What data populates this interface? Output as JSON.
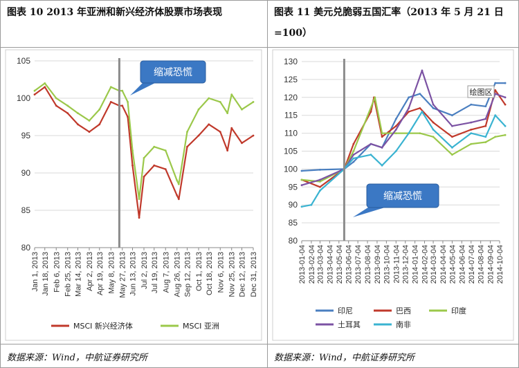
{
  "left": {
    "title": "图表 10 2013 年亚洲和新兴经济体股票市场表现",
    "source": "数据来源：Wind，中航证券研究所",
    "callout": "缩减恐慌"
  },
  "right": {
    "title_line1": "图表 11 美元兑脆弱五国汇率（2013 年 5 月 21 日",
    "title_line2": "=100）",
    "source": "数据来源：Wind，中航证券研究所",
    "callout": "缩减恐慌",
    "plot_area_label": "绘图区"
  },
  "chart_data": [
    {
      "type": "line",
      "title": "",
      "ylim": [
        80,
        105
      ],
      "yticks": [
        80,
        85,
        90,
        95,
        100,
        105
      ],
      "x_tick_labels": [
        "Jan 1, 2013",
        "Jan 18, 2013",
        "Feb 6, 2013",
        "Feb 25, 2013",
        "Mar 14, 2013",
        "Apr 2, 2013",
        "Apr 19, 2013",
        "May 8, 2013",
        "May 27, 2013",
        "Jun 13, 2013",
        "Jul 2, 2013",
        "Jul 19, 2013",
        "Aug 7, 2013",
        "Aug 26, 2013",
        "Sep 12, 2013",
        "Oct 1, 2013",
        "Oct 18, 2013",
        "Nov 6, 2013",
        "Nov 25, 2013",
        "Dec 12, 2013",
        "Dec 31, 2013"
      ],
      "event_x": "May 22, 2013",
      "legend_position": "bottom",
      "series": [
        {
          "name": "MSCI 新兴经济体",
          "color": "#c0392b",
          "x": [
            "Jan 1, 2013",
            "Jan 18, 2013",
            "Feb 6, 2013",
            "Feb 25, 2013",
            "Mar 14, 2013",
            "Apr 2, 2013",
            "Apr 19, 2013",
            "May 8, 2013",
            "May 22, 2013",
            "May 27, 2013",
            "Jun 5, 2013",
            "Jun 13, 2013",
            "Jun 24, 2013",
            "Jul 2, 2013",
            "Jul 19, 2013",
            "Aug 7, 2013",
            "Aug 26, 2013",
            "Aug 29, 2013",
            "Sep 12, 2013",
            "Oct 1, 2013",
            "Oct 18, 2013",
            "Nov 6, 2013",
            "Nov 18, 2013",
            "Nov 25, 2013",
            "Dec 12, 2013",
            "Dec 31, 2013"
          ],
          "values": [
            100.5,
            101.5,
            99.0,
            98.0,
            96.5,
            95.5,
            96.5,
            99.5,
            99.0,
            99.0,
            97.5,
            91.0,
            84.0,
            89.5,
            91.0,
            90.5,
            87.0,
            86.5,
            93.5,
            95.0,
            96.5,
            95.5,
            93.0,
            96.0,
            94.0,
            95.0
          ]
        },
        {
          "name": "MSCI 亚洲",
          "color": "#9bc84a",
          "x": [
            "Jan 1, 2013",
            "Jan 18, 2013",
            "Feb 6, 2013",
            "Feb 25, 2013",
            "Mar 14, 2013",
            "Apr 2, 2013",
            "Apr 19, 2013",
            "May 8, 2013",
            "May 22, 2013",
            "May 27, 2013",
            "Jun 5, 2013",
            "Jun 13, 2013",
            "Jun 24, 2013",
            "Jul 2, 2013",
            "Jul 19, 2013",
            "Aug 7, 2013",
            "Aug 26, 2013",
            "Aug 29, 2013",
            "Sep 12, 2013",
            "Oct 1, 2013",
            "Oct 18, 2013",
            "Nov 6, 2013",
            "Nov 18, 2013",
            "Nov 25, 2013",
            "Dec 12, 2013",
            "Dec 31, 2013"
          ],
          "values": [
            101.0,
            102.0,
            100.0,
            99.0,
            98.0,
            97.0,
            98.5,
            101.5,
            101.0,
            101.0,
            99.5,
            93.0,
            86.5,
            92.0,
            93.5,
            93.0,
            89.0,
            88.5,
            95.5,
            98.5,
            100.0,
            99.5,
            98.0,
            100.5,
            98.5,
            99.5
          ]
        }
      ]
    },
    {
      "type": "line",
      "title": "",
      "ylim": [
        80,
        130
      ],
      "yticks": [
        80,
        85,
        90,
        95,
        100,
        105,
        110,
        115,
        120,
        125,
        130
      ],
      "x_tick_labels": [
        "2013-01-04",
        "2013-02-04",
        "2013-03-04",
        "2013-04-04",
        "2013-05-04",
        "2013-06-04",
        "2013-07-04",
        "2013-08-04",
        "2013-09-04",
        "2013-10-04",
        "2013-11-04",
        "2013-12-04",
        "2014-01-04",
        "2014-02-04",
        "2014-03-04",
        "2014-04-04",
        "2014-05-04",
        "2014-06-04",
        "2014-07-04",
        "2014-08-04",
        "2014-09-04",
        "2014-10-04"
      ],
      "event_x": "2013-05-21",
      "legend_position": "bottom",
      "series": [
        {
          "name": "印尼",
          "color": "#4a7fc0",
          "x": [
            "2013-01-04",
            "2013-03-04",
            "2013-05-21",
            "2013-06-20",
            "2013-08-15",
            "2013-09-20",
            "2013-11-04",
            "2013-12-15",
            "2014-01-20",
            "2014-03-04",
            "2014-05-04",
            "2014-07-04",
            "2014-08-20",
            "2014-09-20",
            "2014-10-22"
          ],
          "values": [
            99.5,
            99.8,
            100.0,
            102.0,
            107.0,
            106.0,
            114.0,
            120.0,
            121.0,
            117.0,
            115.0,
            118.0,
            117.5,
            124.0,
            124.0
          ]
        },
        {
          "name": "巴西",
          "color": "#c0392b",
          "x": [
            "2013-01-04",
            "2013-03-04",
            "2013-05-21",
            "2013-06-20",
            "2013-08-15",
            "2013-08-25",
            "2013-09-20",
            "2013-11-04",
            "2013-12-15",
            "2014-01-20",
            "2014-03-04",
            "2014-05-04",
            "2014-07-04",
            "2014-08-20",
            "2014-09-20",
            "2014-10-22"
          ],
          "values": [
            97.0,
            95.0,
            100.0,
            107.0,
            116.0,
            120.0,
            109.0,
            112.0,
            116.0,
            117.0,
            113.0,
            109.0,
            111.0,
            112.0,
            122.0,
            118.0
          ]
        },
        {
          "name": "印度",
          "color": "#9bc84a",
          "x": [
            "2013-01-04",
            "2013-03-04",
            "2013-05-21",
            "2013-06-20",
            "2013-08-28",
            "2013-09-20",
            "2013-11-04",
            "2013-12-15",
            "2014-01-20",
            "2014-03-04",
            "2014-05-04",
            "2014-07-04",
            "2014-08-20",
            "2014-09-20",
            "2014-10-22"
          ],
          "values": [
            97.0,
            96.5,
            100.0,
            105.0,
            120.0,
            110.0,
            110.0,
            110.0,
            110.0,
            109.0,
            104.0,
            107.0,
            107.5,
            109.0,
            109.5
          ]
        },
        {
          "name": "土耳其",
          "color": "#7b52a3",
          "x": [
            "2013-01-04",
            "2013-03-04",
            "2013-05-21",
            "2013-06-20",
            "2013-08-15",
            "2013-09-20",
            "2013-11-04",
            "2013-12-15",
            "2014-01-27",
            "2014-03-04",
            "2014-05-04",
            "2014-07-04",
            "2014-08-20",
            "2014-09-20",
            "2014-10-22"
          ],
          "values": [
            95.5,
            97.0,
            100.0,
            104.0,
            107.0,
            106.0,
            111.0,
            117.0,
            127.5,
            118.0,
            112.0,
            113.0,
            114.0,
            121.0,
            120.0
          ]
        },
        {
          "name": "南非",
          "color": "#3ab3d1",
          "x": [
            "2013-01-04",
            "2013-02-04",
            "2013-03-04",
            "2013-05-21",
            "2013-06-20",
            "2013-08-15",
            "2013-09-20",
            "2013-11-04",
            "2013-12-15",
            "2014-01-27",
            "2014-03-04",
            "2014-05-04",
            "2014-07-04",
            "2014-08-20",
            "2014-09-20",
            "2014-10-22"
          ],
          "values": [
            89.5,
            90.0,
            94.0,
            100.0,
            103.0,
            104.0,
            101.0,
            105.0,
            110.0,
            116.0,
            111.0,
            106.0,
            110.0,
            109.0,
            115.0,
            112.0
          ]
        }
      ]
    }
  ]
}
